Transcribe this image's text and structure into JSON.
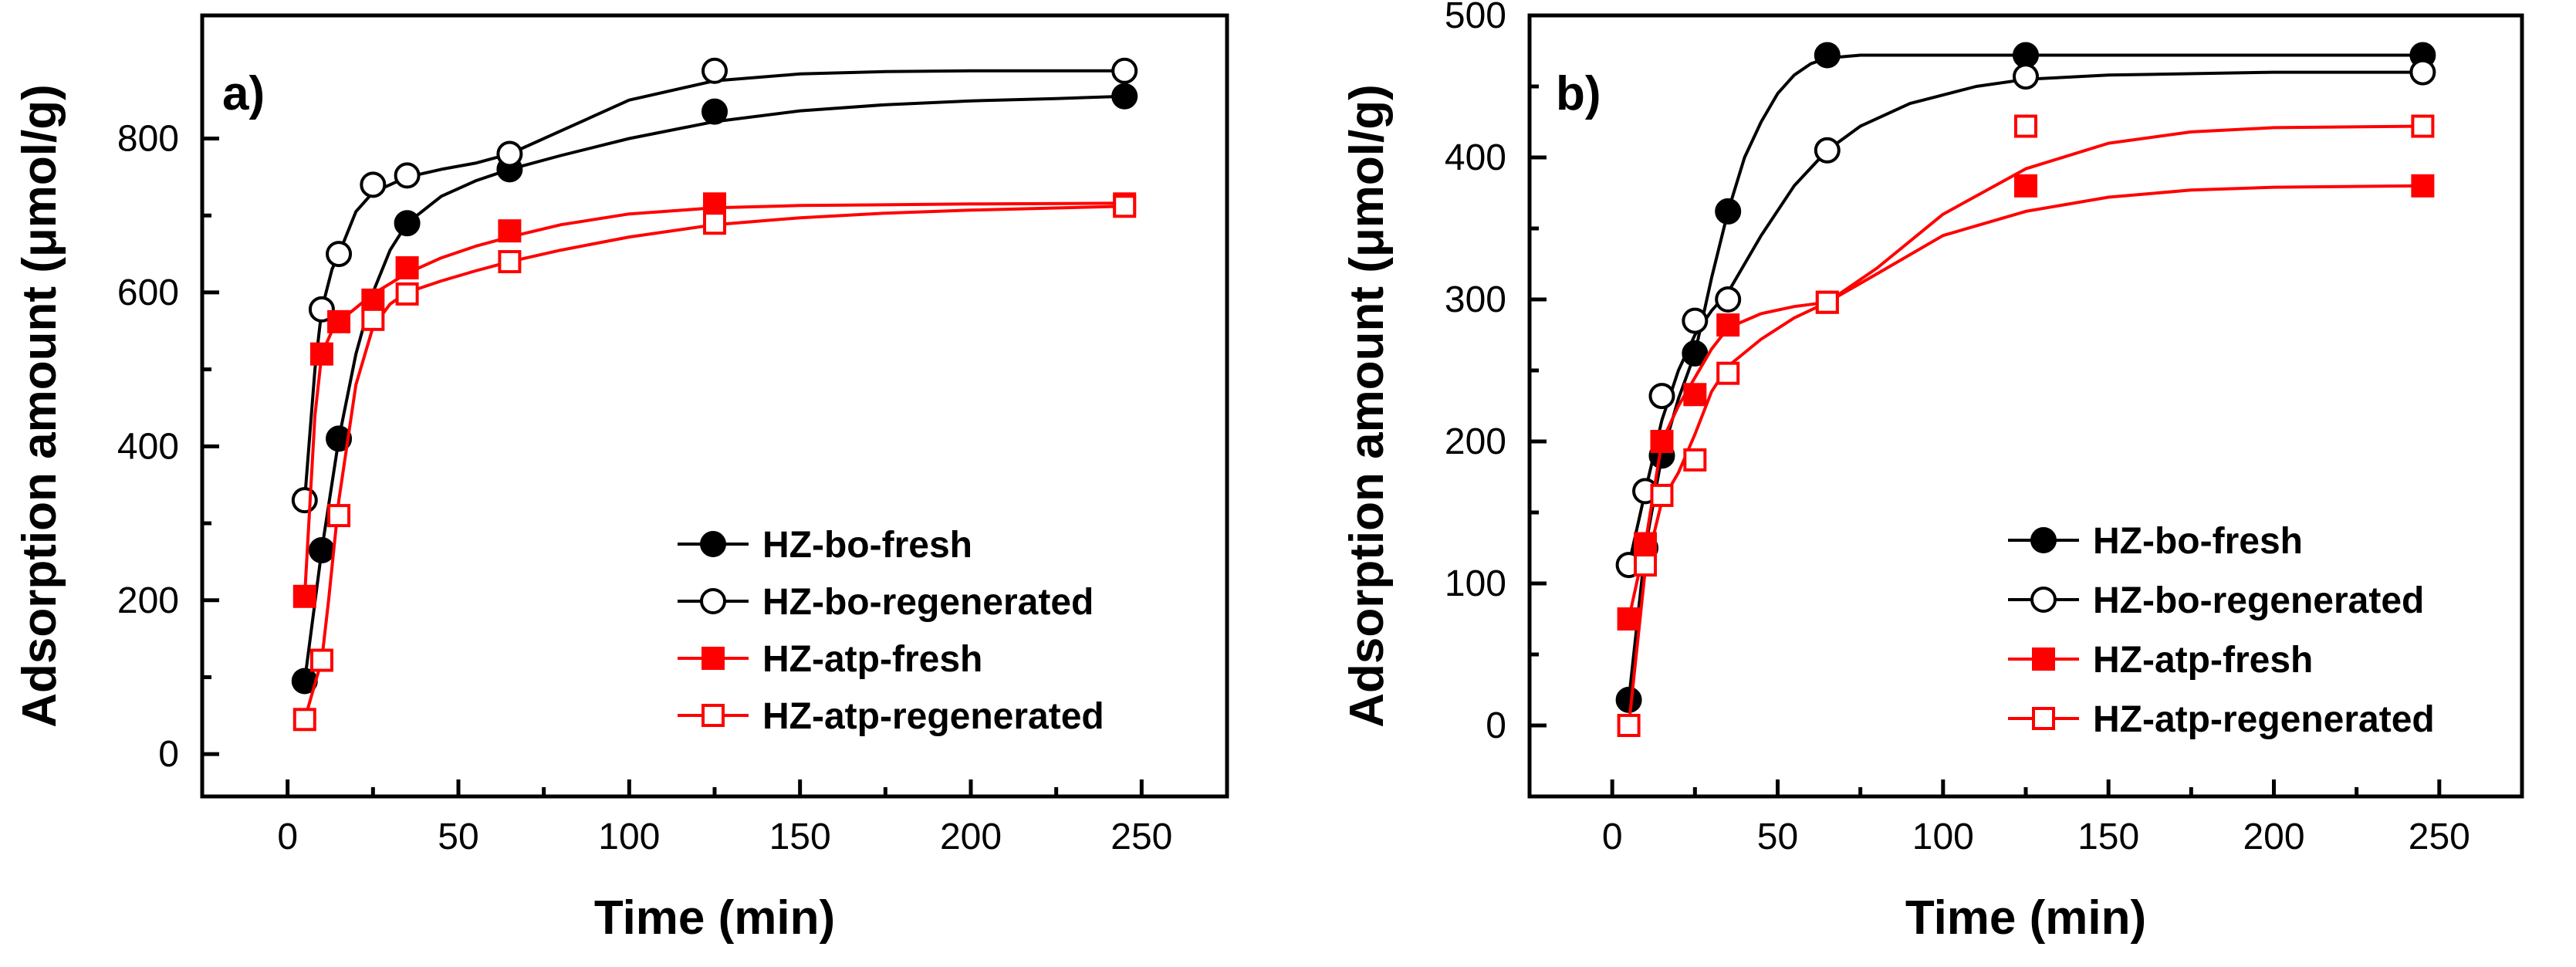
{
  "chart_data": [
    {
      "type": "scatter",
      "panel_label": "a)",
      "xlabel": "Time (min)",
      "ylabel": "Adsorption amount (μmol/g)",
      "xlim": [
        -25,
        275
      ],
      "ylim": [
        -55,
        960
      ],
      "xticks": [
        0,
        50,
        100,
        150,
        200,
        250
      ],
      "yticks": [
        0,
        200,
        400,
        600,
        800
      ],
      "legend_position": "lower-right",
      "series": [
        {
          "name": "HZ-bo-fresh",
          "color": "#000000",
          "marker": "circle",
          "filled": true,
          "x": [
            5,
            10,
            15,
            35,
            65,
            125,
            245
          ],
          "y": [
            95,
            265,
            410,
            690,
            760,
            835,
            855
          ],
          "curve_x": [
            5,
            10,
            15,
            20,
            25,
            30,
            35,
            45,
            55,
            65,
            80,
            100,
            125,
            150,
            175,
            200,
            225,
            245
          ],
          "curve_y": [
            95,
            265,
            410,
            520,
            600,
            655,
            690,
            725,
            745,
            760,
            778,
            800,
            822,
            836,
            844,
            849,
            852,
            855
          ]
        },
        {
          "name": "HZ-bo-regenerated",
          "color": "#000000",
          "marker": "circle",
          "filled": false,
          "x": [
            5,
            10,
            15,
            25,
            35,
            65,
            125,
            245
          ],
          "y": [
            330,
            578,
            650,
            740,
            752,
            780,
            888,
            888
          ],
          "curve_x": [
            5,
            8,
            10,
            13,
            15,
            20,
            25,
            35,
            45,
            55,
            65,
            80,
            100,
            125,
            150,
            175,
            200,
            245
          ],
          "curve_y": [
            330,
            500,
            578,
            630,
            650,
            705,
            730,
            750,
            760,
            768,
            780,
            810,
            850,
            875,
            884,
            887,
            888,
            888
          ]
        },
        {
          "name": "HZ-atp-fresh",
          "color": "#ff0000",
          "marker": "square",
          "filled": true,
          "x": [
            5,
            10,
            15,
            25,
            35,
            65,
            125,
            245
          ],
          "y": [
            205,
            520,
            562,
            590,
            632,
            680,
            715,
            715
          ],
          "curve_x": [
            5,
            8,
            10,
            13,
            15,
            20,
            25,
            35,
            45,
            55,
            65,
            80,
            100,
            125,
            150,
            200,
            245
          ],
          "curve_y": [
            205,
            440,
            520,
            550,
            562,
            580,
            598,
            625,
            645,
            660,
            672,
            688,
            702,
            710,
            713,
            715,
            716
          ]
        },
        {
          "name": "HZ-atp-regenerated",
          "color": "#ff0000",
          "marker": "square",
          "filled": false,
          "x": [
            5,
            10,
            15,
            25,
            35,
            65,
            125,
            245
          ],
          "y": [
            45,
            122,
            310,
            565,
            598,
            640,
            690,
            712
          ],
          "curve_x": [
            5,
            10,
            12,
            15,
            20,
            25,
            30,
            35,
            45,
            55,
            65,
            80,
            100,
            125,
            150,
            175,
            200,
            245
          ],
          "curve_y": [
            45,
            122,
            200,
            330,
            480,
            555,
            585,
            600,
            615,
            628,
            640,
            655,
            672,
            688,
            697,
            703,
            707,
            712
          ]
        }
      ]
    },
    {
      "type": "scatter",
      "panel_label": "b)",
      "xlabel": "Time (min)",
      "ylabel": "Adsorption amount (μmol/g)",
      "xlim": [
        -25,
        275
      ],
      "ylim": [
        -50,
        500
      ],
      "xticks": [
        0,
        50,
        100,
        150,
        200,
        250
      ],
      "yticks": [
        0,
        100,
        200,
        300,
        400,
        500
      ],
      "legend_position": "lower-right",
      "series": [
        {
          "name": "HZ-bo-fresh",
          "color": "#000000",
          "marker": "circle",
          "filled": true,
          "x": [
            5,
            10,
            15,
            25,
            35,
            65,
            125,
            245
          ],
          "y": [
            18,
            125,
            190,
            262,
            362,
            472,
            472,
            472
          ],
          "curve_x": [
            5,
            10,
            15,
            20,
            25,
            30,
            35,
            40,
            45,
            50,
            55,
            60,
            65,
            75,
            90,
            110,
            125,
            150,
            200,
            245
          ],
          "curve_y": [
            18,
            125,
            190,
            230,
            262,
            315,
            362,
            400,
            425,
            445,
            458,
            466,
            470,
            472,
            472,
            472,
            472,
            472,
            472,
            472
          ]
        },
        {
          "name": "HZ-bo-regenerated",
          "color": "#000000",
          "marker": "circle",
          "filled": false,
          "x": [
            5,
            10,
            15,
            25,
            35,
            65,
            125,
            245
          ],
          "y": [
            113,
            165,
            232,
            285,
            300,
            405,
            457,
            460
          ],
          "curve_x": [
            5,
            10,
            15,
            20,
            25,
            30,
            35,
            45,
            55,
            65,
            75,
            90,
            110,
            125,
            150,
            200,
            245
          ],
          "curve_y": [
            113,
            165,
            215,
            250,
            275,
            292,
            305,
            345,
            380,
            405,
            422,
            438,
            450,
            455,
            458,
            460,
            460
          ]
        },
        {
          "name": "HZ-atp-fresh",
          "color": "#ff0000",
          "marker": "square",
          "filled": true,
          "x": [
            5,
            10,
            15,
            25,
            35,
            65,
            125,
            245
          ],
          "y": [
            75,
            128,
            200,
            233,
            282,
            298,
            380,
            380
          ],
          "curve_x": [
            5,
            10,
            15,
            20,
            25,
            30,
            35,
            45,
            55,
            65,
            80,
            100,
            125,
            150,
            175,
            200,
            245
          ],
          "curve_y": [
            75,
            128,
            200,
            225,
            245,
            265,
            280,
            290,
            295,
            298,
            318,
            345,
            362,
            372,
            377,
            379,
            380
          ]
        },
        {
          "name": "HZ-atp-regenerated",
          "color": "#ff0000",
          "marker": "square",
          "filled": false,
          "x": [
            5,
            10,
            15,
            25,
            35,
            65,
            125,
            245
          ],
          "y": [
            0,
            113,
            162,
            187,
            248,
            298,
            422,
            422
          ],
          "curve_x": [
            5,
            10,
            15,
            20,
            25,
            30,
            35,
            45,
            55,
            65,
            80,
            100,
            125,
            150,
            175,
            200,
            245
          ],
          "curve_y": [
            0,
            110,
            158,
            178,
            205,
            235,
            253,
            272,
            287,
            298,
            322,
            360,
            392,
            410,
            418,
            421,
            422
          ]
        }
      ]
    }
  ]
}
